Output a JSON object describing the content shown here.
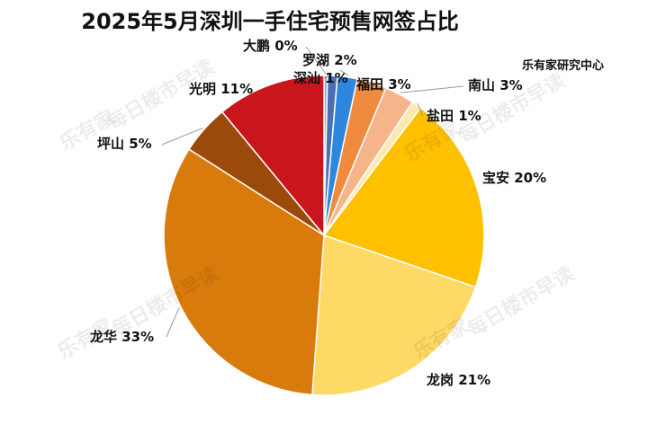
{
  "title": "2025年5月深圳一手住宅预售网签占比",
  "source": "乐有家研究中心",
  "watermark": {
    "brand": "乐有家",
    "text": "每日楼市早读"
  },
  "chart_data": {
    "type": "pie",
    "title": "2025年5月深圳一手住宅预售网签占比",
    "slices": [
      {
        "name": "大鹏",
        "value": 0,
        "label": "大鹏 0%",
        "color": "#8fa8d8"
      },
      {
        "name": "深汕",
        "value": 1,
        "label": "深汕 1%",
        "color": "#4a6fb5"
      },
      {
        "name": "罗湖",
        "value": 2,
        "label": "罗湖 2%",
        "color": "#2e86de"
      },
      {
        "name": "福田",
        "value": 3,
        "label": "福田 3%",
        "color": "#f08a3c"
      },
      {
        "name": "南山",
        "value": 3,
        "label": "南山 3%",
        "color": "#f5b48a"
      },
      {
        "name": "盐田",
        "value": 1,
        "label": "盐田 1%",
        "color": "#fde9b0"
      },
      {
        "name": "宝安",
        "value": 20,
        "label": "宝安 20%",
        "color": "#ffc000"
      },
      {
        "name": "龙岗",
        "value": 21,
        "label": "龙岗 21%",
        "color": "#ffd966"
      },
      {
        "name": "龙华",
        "value": 33,
        "label": "龙华 33%",
        "color": "#d97b0c"
      },
      {
        "name": "坪山",
        "value": 5,
        "label": "坪山 5%",
        "color": "#9c4a0c"
      },
      {
        "name": "光明",
        "value": 11,
        "label": "光明 11%",
        "color": "#c9161d"
      }
    ]
  }
}
